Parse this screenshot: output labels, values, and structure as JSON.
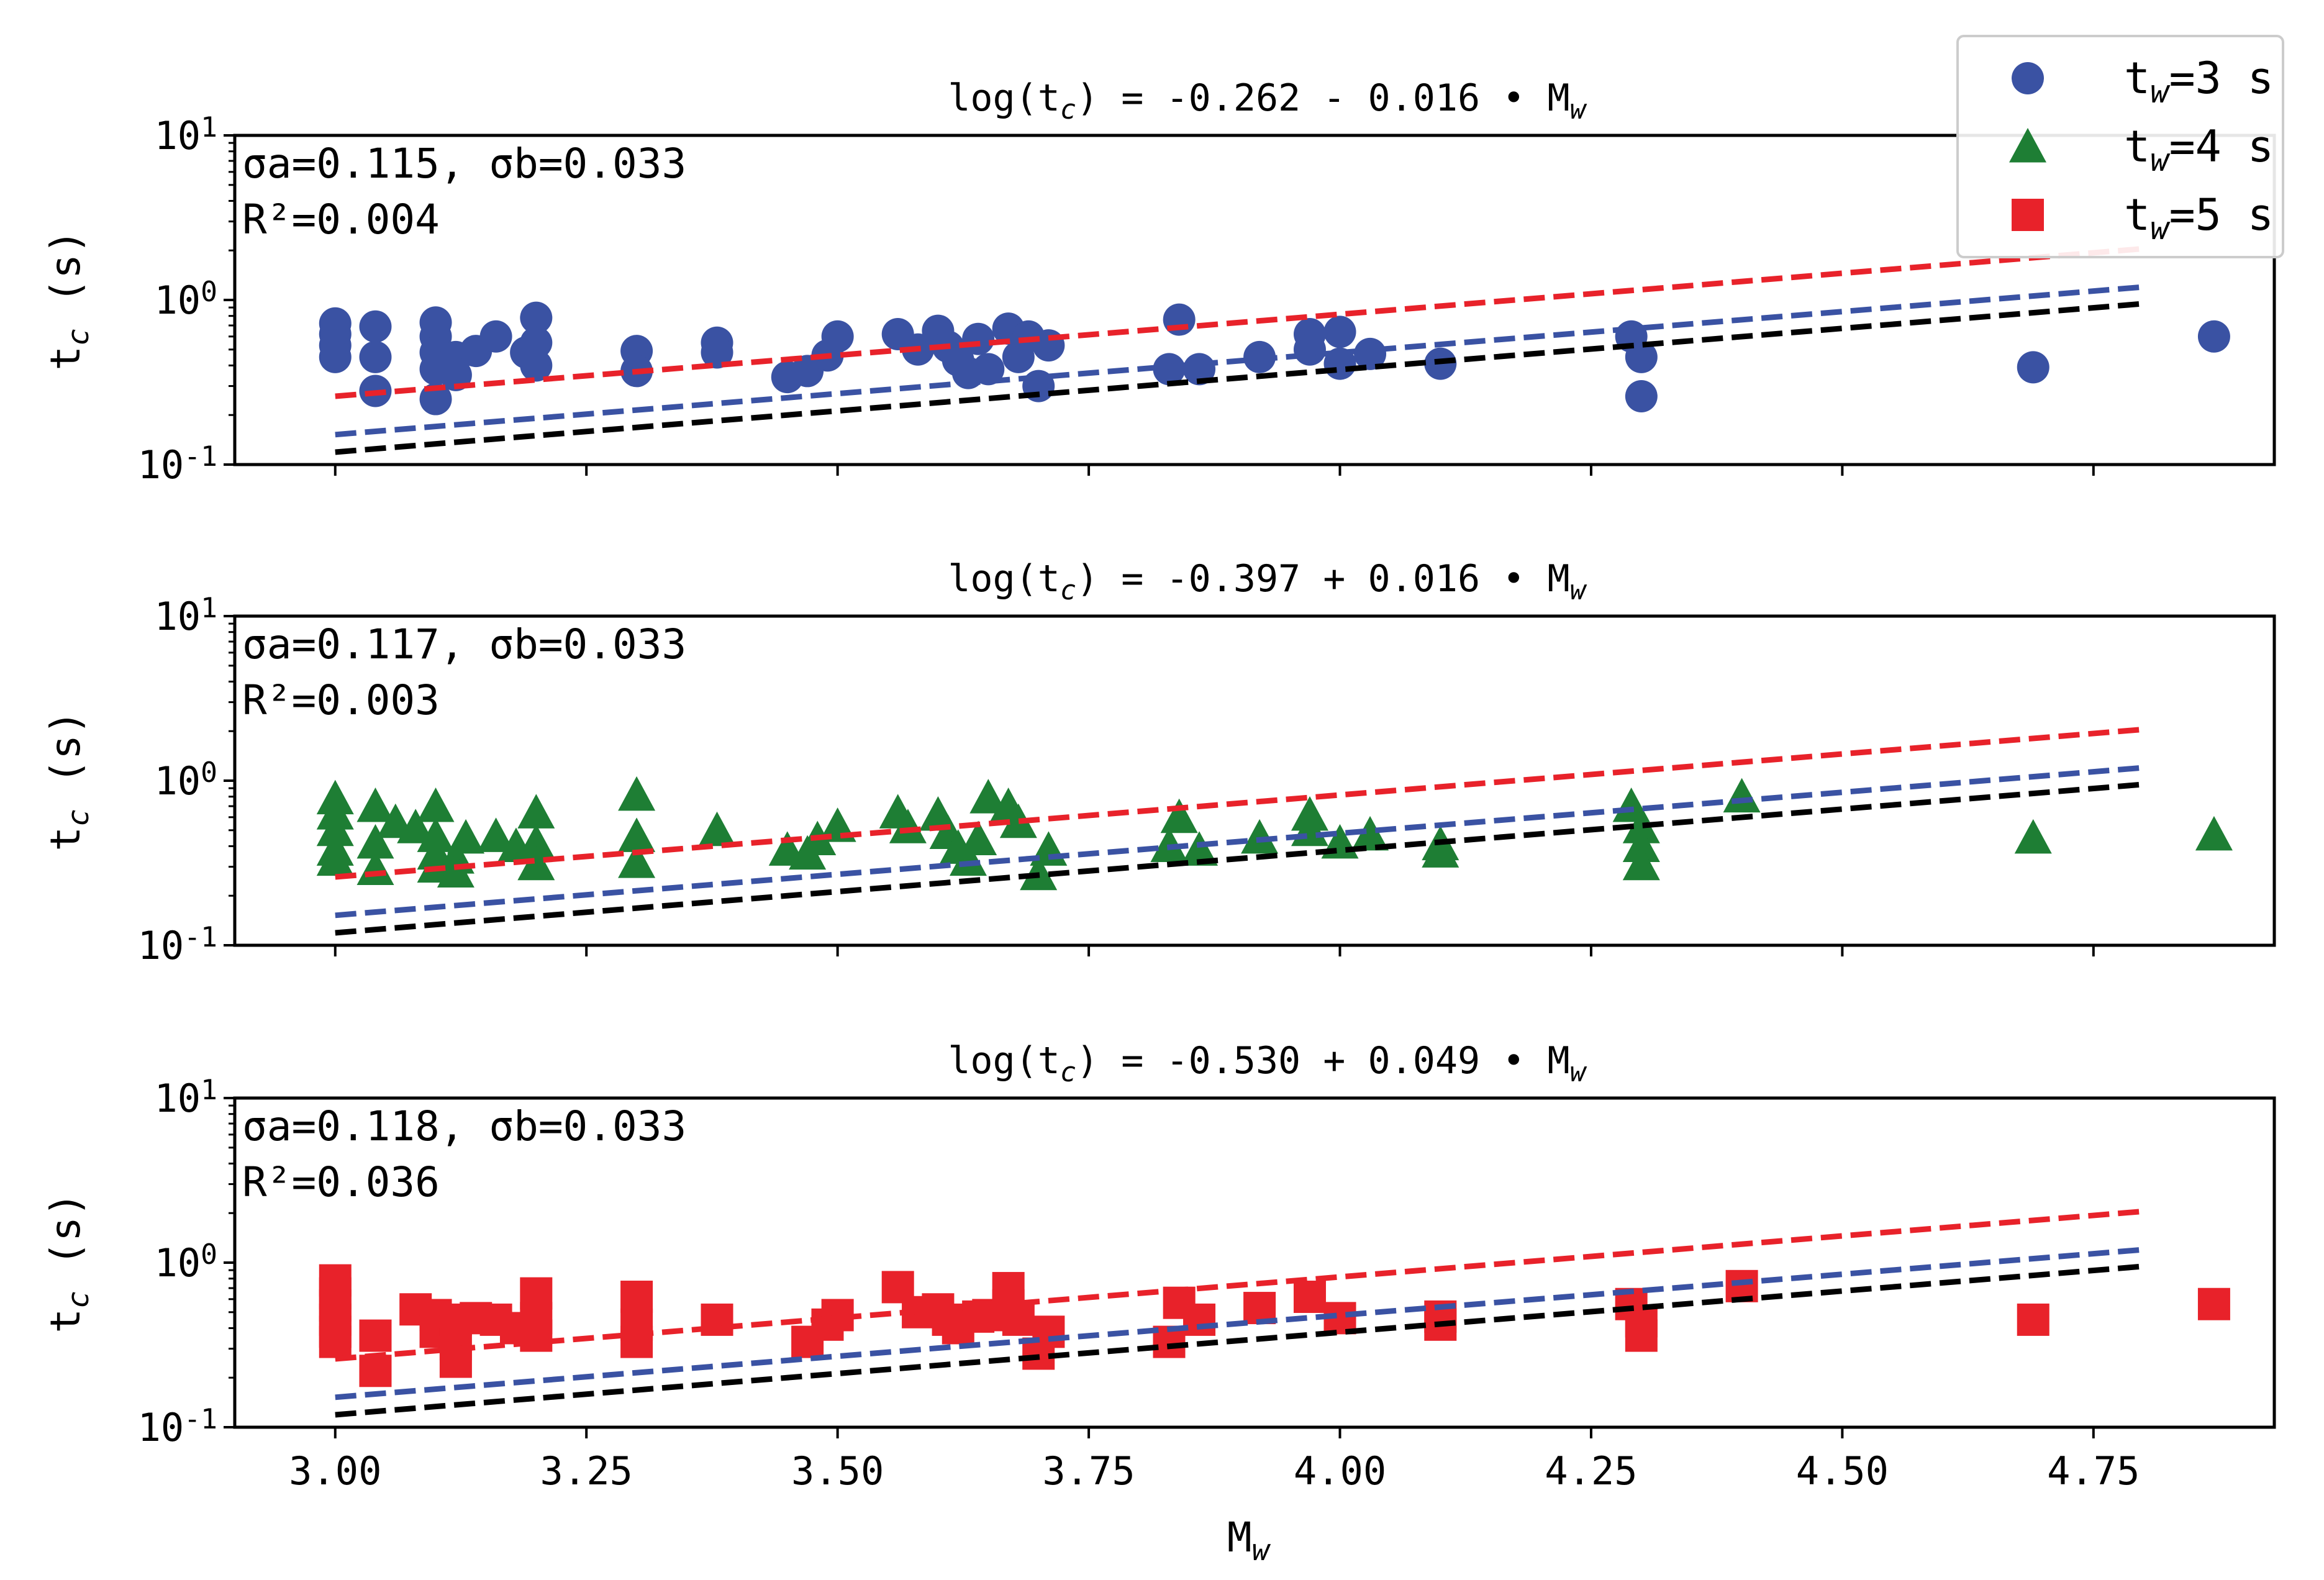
{
  "chart_data": {
    "type": "scatter",
    "xlabel": "M_w",
    "xlim": [
      2.9,
      4.93
    ],
    "xticks": [
      "3.00",
      "3.25",
      "3.50",
      "3.75",
      "4.00",
      "4.25",
      "4.50",
      "4.75"
    ],
    "xtick_values": [
      3.0,
      3.25,
      3.5,
      3.75,
      4.0,
      4.25,
      4.5,
      4.75
    ],
    "yscale": "log",
    "ylim": [
      0.1,
      10
    ],
    "yticks": [
      "10^-1",
      "10^0",
      "10^1"
    ],
    "ylabel": "t_c (s)",
    "legend": {
      "position": "top-right",
      "entries": [
        {
          "label": "t_w=3 s",
          "marker": "circle",
          "color": "#3a52a3"
        },
        {
          "label": "t_w=4 s",
          "marker": "triangle",
          "color": "#1e7e34"
        },
        {
          "label": "t_w=5 s",
          "marker": "square",
          "color": "#e8222a"
        }
      ]
    },
    "reference_lines": [
      {
        "name": "red",
        "color": "#e8222a",
        "x": [
          3.0,
          4.8
        ],
        "y": [
          0.26,
          2.05
        ]
      },
      {
        "name": "blue",
        "color": "#3a52a3",
        "x": [
          3.0,
          4.8
        ],
        "y": [
          0.152,
          1.2
        ]
      },
      {
        "name": "black",
        "color": "#000000",
        "x": [
          3.0,
          4.8
        ],
        "y": [
          0.119,
          0.95
        ]
      }
    ],
    "panels": [
      {
        "title": "log(t_c) =  -0.262 - 0.016 • M_w",
        "sigma_text": "σa=0.115, σb=0.033",
        "r2_text": "R²=0.004",
        "series": "t_w=3 s",
        "marker": "circle",
        "color": "#3a52a3",
        "points": [
          [
            3.0,
            0.72
          ],
          [
            3.0,
            0.62
          ],
          [
            3.0,
            0.53
          ],
          [
            3.0,
            0.45
          ],
          [
            3.04,
            0.69
          ],
          [
            3.04,
            0.45
          ],
          [
            3.04,
            0.28
          ],
          [
            3.1,
            0.73
          ],
          [
            3.1,
            0.6
          ],
          [
            3.1,
            0.48
          ],
          [
            3.1,
            0.38
          ],
          [
            3.1,
            0.25
          ],
          [
            3.12,
            0.45
          ],
          [
            3.12,
            0.35
          ],
          [
            3.14,
            0.49
          ],
          [
            3.16,
            0.6
          ],
          [
            3.19,
            0.48
          ],
          [
            3.2,
            0.78
          ],
          [
            3.2,
            0.55
          ],
          [
            3.2,
            0.4
          ],
          [
            3.3,
            0.49
          ],
          [
            3.3,
            0.37
          ],
          [
            3.38,
            0.55
          ],
          [
            3.38,
            0.48
          ],
          [
            3.45,
            0.34
          ],
          [
            3.47,
            0.37
          ],
          [
            3.49,
            0.46
          ],
          [
            3.5,
            0.6
          ],
          [
            3.56,
            0.62
          ],
          [
            3.58,
            0.5
          ],
          [
            3.6,
            0.65
          ],
          [
            3.61,
            0.52
          ],
          [
            3.62,
            0.43
          ],
          [
            3.63,
            0.36
          ],
          [
            3.64,
            0.58
          ],
          [
            3.65,
            0.38
          ],
          [
            3.67,
            0.67
          ],
          [
            3.68,
            0.45
          ],
          [
            3.69,
            0.6
          ],
          [
            3.7,
            0.3
          ],
          [
            3.71,
            0.53
          ],
          [
            3.84,
            0.76
          ],
          [
            3.83,
            0.38
          ],
          [
            3.86,
            0.38
          ],
          [
            3.92,
            0.45
          ],
          [
            3.97,
            0.62
          ],
          [
            3.97,
            0.5
          ],
          [
            4.0,
            0.64
          ],
          [
            4.0,
            0.41
          ],
          [
            4.03,
            0.47
          ],
          [
            4.1,
            0.41
          ],
          [
            4.29,
            0.6
          ],
          [
            4.3,
            0.45
          ],
          [
            4.3,
            0.26
          ],
          [
            4.69,
            0.39
          ],
          [
            4.87,
            0.6
          ]
        ]
      },
      {
        "title": "log(t_c) =  -0.397 + 0.016 • M_w",
        "sigma_text": "σa=0.117, σb=0.033",
        "r2_text": "R²=0.003",
        "series": "t_w=4 s",
        "marker": "triangle",
        "color": "#1e7e34",
        "points": [
          [
            3.0,
            0.78
          ],
          [
            3.0,
            0.63
          ],
          [
            3.0,
            0.5
          ],
          [
            3.0,
            0.38
          ],
          [
            3.0,
            0.33
          ],
          [
            3.04,
            0.7
          ],
          [
            3.04,
            0.42
          ],
          [
            3.04,
            0.29
          ],
          [
            3.06,
            0.56
          ],
          [
            3.08,
            0.52
          ],
          [
            3.1,
            0.7
          ],
          [
            3.1,
            0.46
          ],
          [
            3.1,
            0.36
          ],
          [
            3.1,
            0.3
          ],
          [
            3.12,
            0.34
          ],
          [
            3.12,
            0.28
          ],
          [
            3.13,
            0.45
          ],
          [
            3.16,
            0.46
          ],
          [
            3.18,
            0.4
          ],
          [
            3.2,
            0.64
          ],
          [
            3.2,
            0.42
          ],
          [
            3.2,
            0.31
          ],
          [
            3.3,
            0.82
          ],
          [
            3.3,
            0.46
          ],
          [
            3.3,
            0.32
          ],
          [
            3.38,
            0.5
          ],
          [
            3.45,
            0.38
          ],
          [
            3.47,
            0.36
          ],
          [
            3.48,
            0.44
          ],
          [
            3.5,
            0.53
          ],
          [
            3.56,
            0.64
          ],
          [
            3.57,
            0.52
          ],
          [
            3.6,
            0.62
          ],
          [
            3.61,
            0.48
          ],
          [
            3.62,
            0.39
          ],
          [
            3.63,
            0.33
          ],
          [
            3.64,
            0.44
          ],
          [
            3.65,
            0.79
          ],
          [
            3.67,
            0.7
          ],
          [
            3.68,
            0.56
          ],
          [
            3.7,
            0.27
          ],
          [
            3.71,
            0.38
          ],
          [
            3.84,
            0.6
          ],
          [
            3.83,
            0.4
          ],
          [
            3.86,
            0.38
          ],
          [
            3.92,
            0.45
          ],
          [
            3.97,
            0.62
          ],
          [
            3.97,
            0.5
          ],
          [
            4.0,
            0.42
          ],
          [
            4.03,
            0.47
          ],
          [
            4.1,
            0.41
          ],
          [
            4.1,
            0.37
          ],
          [
            4.29,
            0.7
          ],
          [
            4.3,
            0.52
          ],
          [
            4.3,
            0.4
          ],
          [
            4.3,
            0.31
          ],
          [
            4.4,
            0.8
          ],
          [
            4.69,
            0.45
          ],
          [
            4.87,
            0.47
          ]
        ]
      },
      {
        "title": "log(t_c) =  -0.530 + 0.049 • M_w",
        "sigma_text": "σa=0.118, σb=0.033",
        "r2_text": "R²=0.036",
        "series": "t_w=5 s",
        "marker": "square",
        "color": "#e8222a",
        "points": [
          [
            3.0,
            0.78
          ],
          [
            3.0,
            0.65
          ],
          [
            3.0,
            0.55
          ],
          [
            3.0,
            0.45
          ],
          [
            3.0,
            0.38
          ],
          [
            3.0,
            0.33
          ],
          [
            3.04,
            0.36
          ],
          [
            3.04,
            0.22
          ],
          [
            3.08,
            0.52
          ],
          [
            3.1,
            0.48
          ],
          [
            3.1,
            0.38
          ],
          [
            3.12,
            0.45
          ],
          [
            3.12,
            0.32
          ],
          [
            3.12,
            0.25
          ],
          [
            3.14,
            0.46
          ],
          [
            3.16,
            0.45
          ],
          [
            3.18,
            0.4
          ],
          [
            3.2,
            0.65
          ],
          [
            3.2,
            0.46
          ],
          [
            3.2,
            0.36
          ],
          [
            3.3,
            0.62
          ],
          [
            3.3,
            0.42
          ],
          [
            3.3,
            0.33
          ],
          [
            3.38,
            0.45
          ],
          [
            3.47,
            0.33
          ],
          [
            3.49,
            0.42
          ],
          [
            3.5,
            0.48
          ],
          [
            3.56,
            0.71
          ],
          [
            3.58,
            0.5
          ],
          [
            3.6,
            0.52
          ],
          [
            3.61,
            0.45
          ],
          [
            3.62,
            0.4
          ],
          [
            3.64,
            0.47
          ],
          [
            3.65,
            0.48
          ],
          [
            3.67,
            0.7
          ],
          [
            3.67,
            0.55
          ],
          [
            3.68,
            0.45
          ],
          [
            3.7,
            0.28
          ],
          [
            3.71,
            0.38
          ],
          [
            3.83,
            0.33
          ],
          [
            3.84,
            0.57
          ],
          [
            3.86,
            0.45
          ],
          [
            3.92,
            0.53
          ],
          [
            3.97,
            0.62
          ],
          [
            4.0,
            0.46
          ],
          [
            4.1,
            0.47
          ],
          [
            4.1,
            0.42
          ],
          [
            4.29,
            0.56
          ],
          [
            4.3,
            0.44
          ],
          [
            4.3,
            0.36
          ],
          [
            4.4,
            0.72
          ],
          [
            4.69,
            0.45
          ],
          [
            4.87,
            0.56
          ]
        ]
      }
    ]
  }
}
